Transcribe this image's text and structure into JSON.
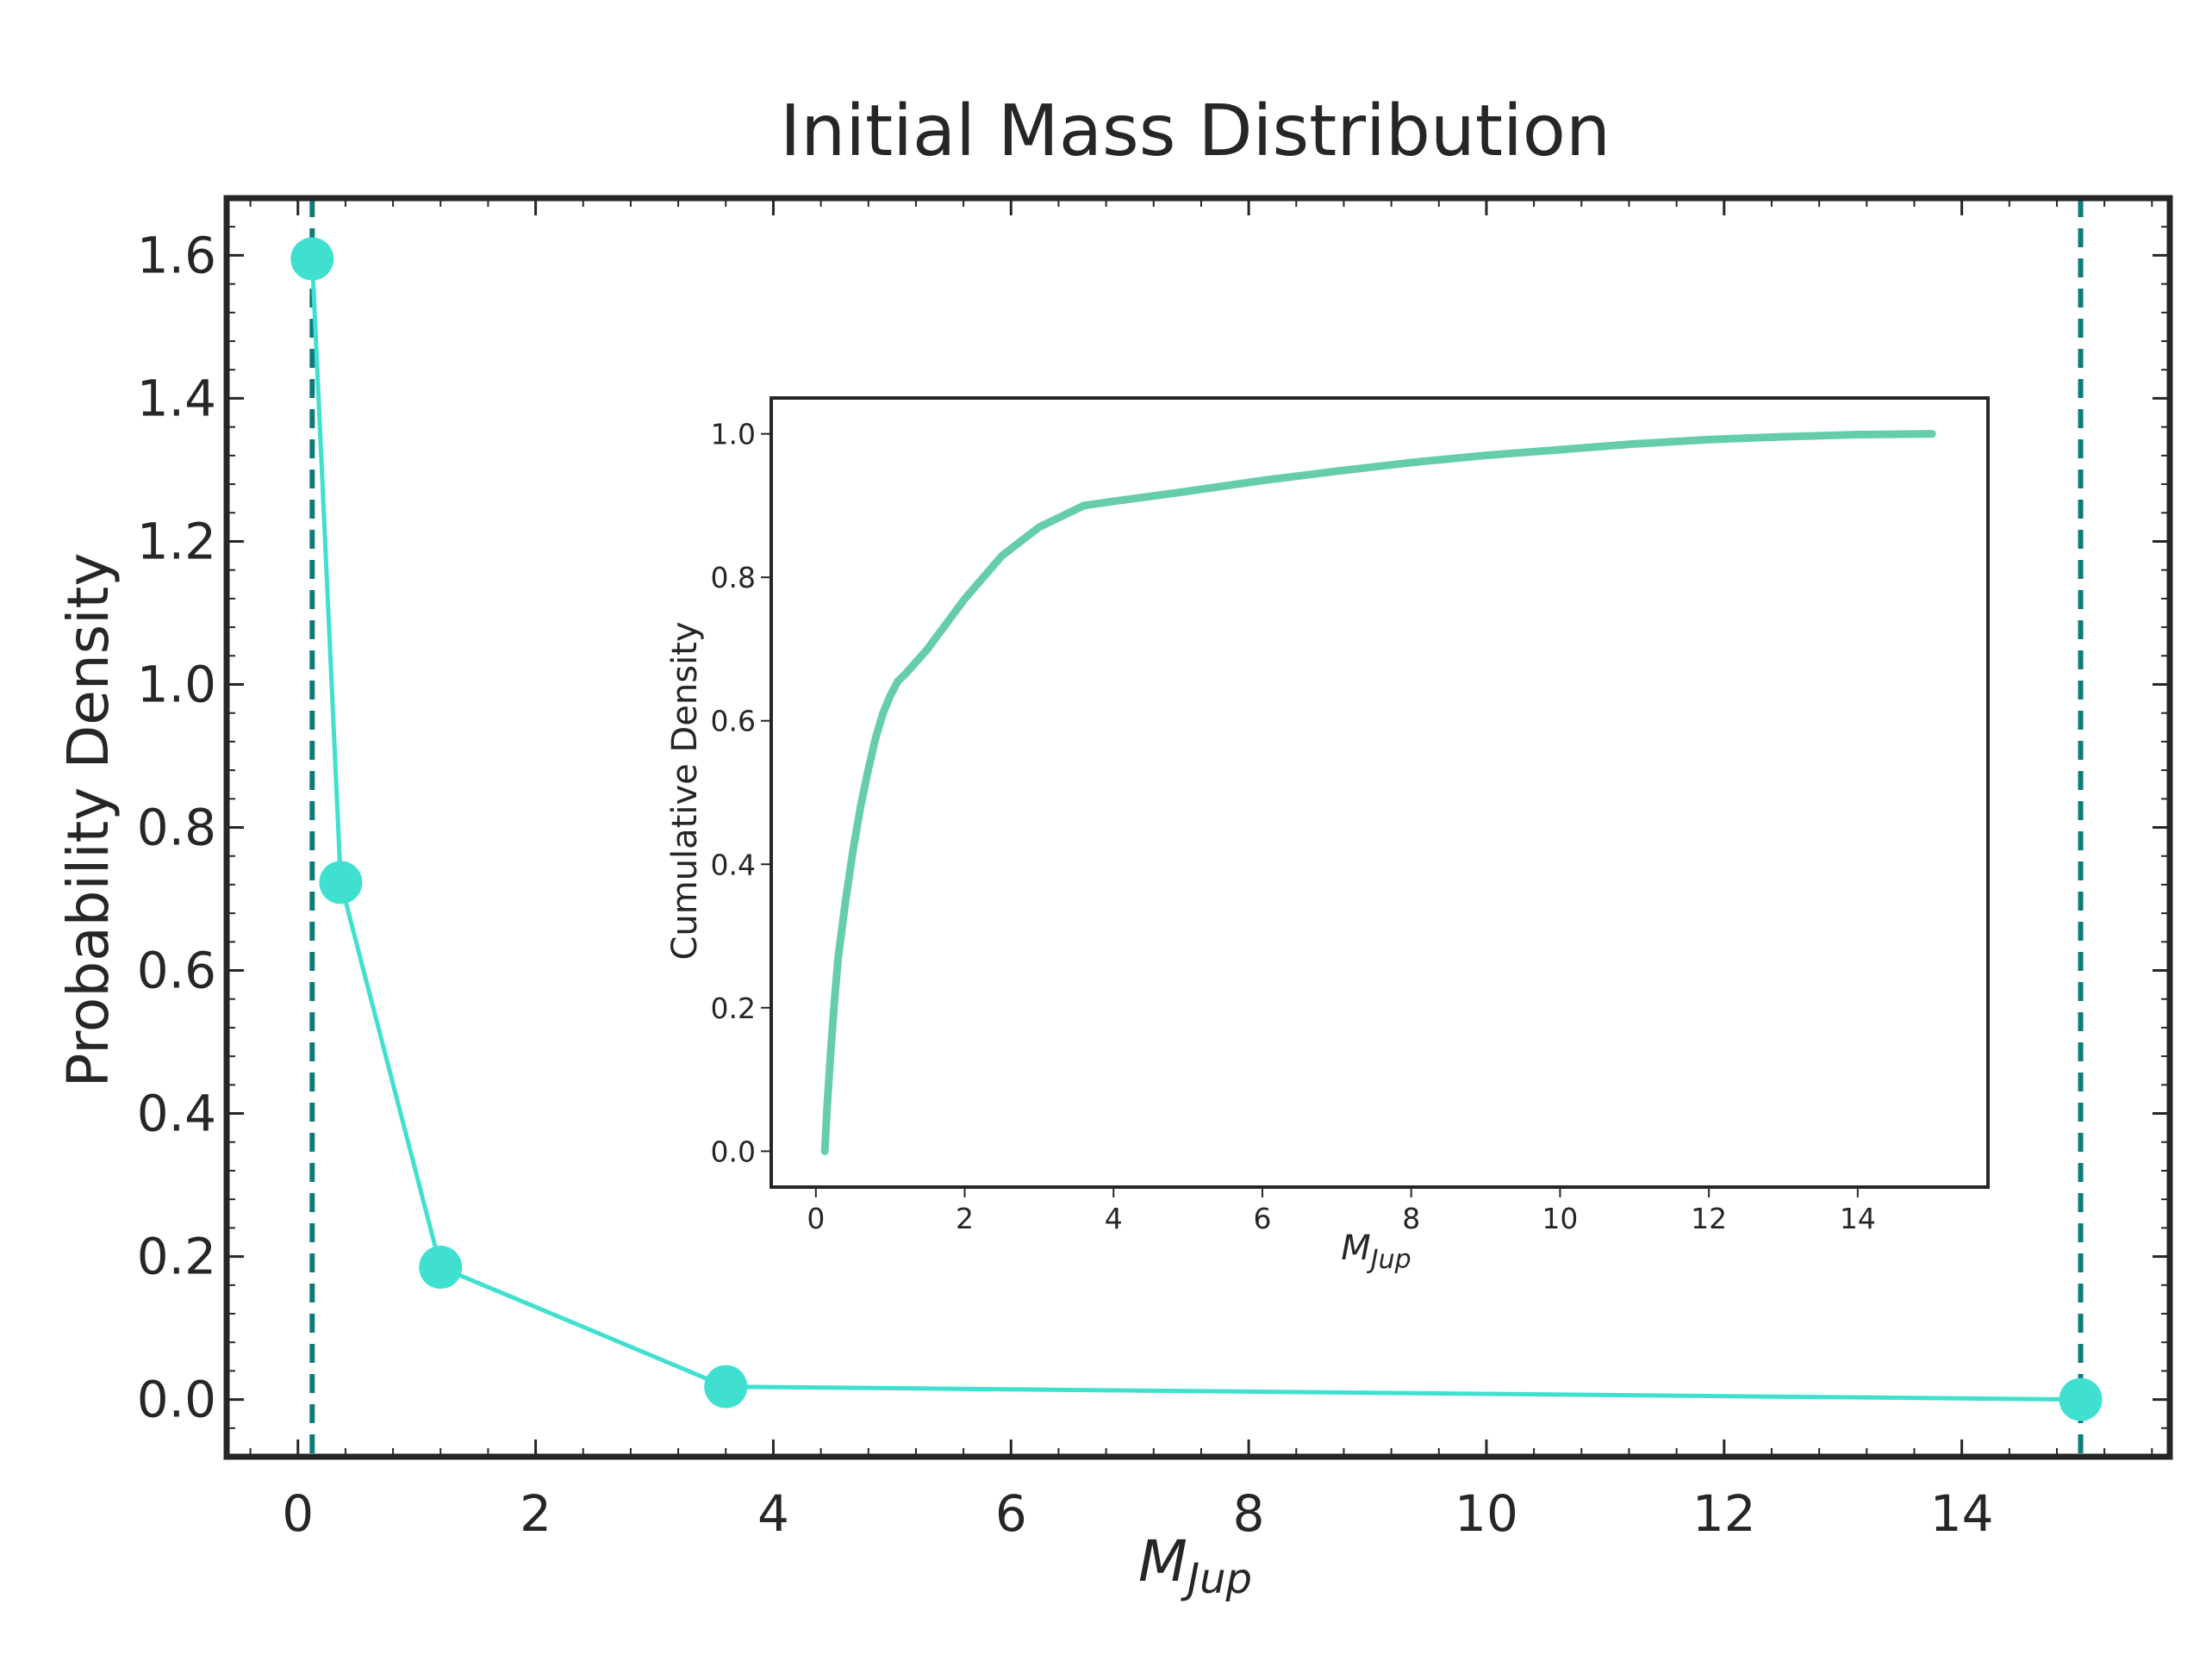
{
  "chart_data": [
    {
      "type": "line",
      "title": "Initial Mass Distribution",
      "xlabel": {
        "base": "M",
        "sub": "Jup"
      },
      "ylabel": "Probability Density",
      "xlim": [
        -0.6,
        15.75
      ],
      "ylim": [
        -0.08,
        1.68
      ],
      "xticks": [
        0,
        2,
        4,
        6,
        8,
        10,
        12,
        14
      ],
      "yticks": [
        0.0,
        0.2,
        0.4,
        0.6,
        0.8,
        1.0,
        1.2,
        1.4,
        1.6
      ],
      "x_minor_step": 0.4,
      "y_minor_step": 0.04,
      "grid": false,
      "series": [
        {
          "name": "probability density",
          "color": "#40E0D0",
          "marker": "circle",
          "x": [
            0.12,
            0.36,
            1.2,
            3.6,
            15.0
          ],
          "y": [
            1.595,
            0.723,
            0.185,
            0.018,
            0.0
          ]
        }
      ],
      "vlines": [
        {
          "x": 0.12,
          "color": "#0F7A7A",
          "style": "dashed"
        },
        {
          "x": 15.0,
          "color": "#0F7A7A",
          "style": "dashed"
        }
      ]
    },
    {
      "type": "line",
      "role": "inset",
      "xlabel": {
        "base": "M",
        "sub": "Jup"
      },
      "ylabel": "Cumulative Density",
      "xlim": [
        -0.6,
        15.75
      ],
      "ylim": [
        -0.05,
        1.05
      ],
      "xticks": [
        0,
        2,
        4,
        6,
        8,
        10,
        12,
        14
      ],
      "yticks": [
        0.0,
        0.2,
        0.4,
        0.6,
        0.8,
        1.0
      ],
      "grid": false,
      "series": [
        {
          "name": "cumulative density",
          "color": "#66CDAA",
          "x": [
            0.12,
            0.15,
            0.2,
            0.25,
            0.3,
            0.4,
            0.5,
            0.6,
            0.7,
            0.8,
            0.9,
            1.0,
            1.1,
            1.2,
            1.5,
            2.0,
            2.5,
            3.0,
            3.6,
            4.0,
            5.0,
            6.0,
            7.0,
            8.0,
            9.0,
            10.0,
            11.0,
            12.0,
            13.0,
            14.0,
            15.0
          ],
          "y": [
            0.0,
            0.06,
            0.14,
            0.21,
            0.27,
            0.35,
            0.42,
            0.48,
            0.53,
            0.575,
            0.61,
            0.635,
            0.655,
            0.665,
            0.7,
            0.77,
            0.83,
            0.87,
            0.9,
            0.906,
            0.92,
            0.935,
            0.948,
            0.96,
            0.97,
            0.978,
            0.986,
            0.992,
            0.996,
            0.999,
            1.0
          ]
        }
      ]
    }
  ]
}
